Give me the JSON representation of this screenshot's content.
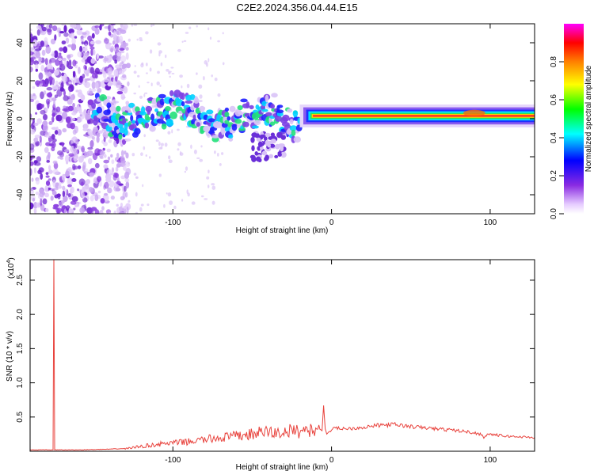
{
  "title": "C2E2.2024.356.04.44.E15",
  "colors": {
    "snr_line": "#e8423c",
    "spectro_low": "#7a3fd6",
    "spectro_band": "#ff2a2a"
  },
  "chart_data": [
    {
      "type": "heatmap",
      "xlabel": "Height of straight line (km)",
      "ylabel": "Frequency (Hz)",
      "xlim": [
        -190,
        128
      ],
      "ylim": [
        -50,
        50
      ],
      "x_ticks": [
        -100,
        0,
        100
      ],
      "y_ticks": [
        -40,
        -20,
        0,
        20,
        40
      ],
      "x_tick_labels": [
        "-100",
        "0",
        "100"
      ],
      "y_tick_labels": [
        "-40",
        "-20",
        "0",
        "20",
        "40"
      ],
      "colorbar": {
        "label": "Normalized spectral amplitude",
        "range": [
          0,
          1
        ],
        "ticks": [
          0.0,
          0.2,
          0.4,
          0.6,
          0.8
        ],
        "tick_labels": [
          "0.0",
          "0.2",
          "0.4",
          "0.6",
          "0.8"
        ],
        "colormap": [
          "#ffffff",
          "#8a2be2",
          "#0000ff",
          "#00ffff",
          "#00ff00",
          "#ffff00",
          "#ff8000",
          "#ff0000",
          "#ff00ff"
        ]
      },
      "features": {
        "noise_region_x": [
          -190,
          -128
        ],
        "wavy_band_x": [
          -150,
          -20
        ],
        "steady_band_x": [
          -20,
          128
        ],
        "steady_band_frequency": 1.5
      }
    },
    {
      "type": "line",
      "xlabel": "Height of straight line (km)",
      "ylabel": "SNR (10 * v/v)",
      "y_multiplier": "(x10",
      "y_multiplier_exp": "4",
      "xlim": [
        -190,
        128
      ],
      "ylim": [
        0,
        28000
      ],
      "x_ticks": [
        -100,
        0,
        100
      ],
      "y_ticks": [
        5000,
        10000,
        15000,
        20000,
        25000
      ],
      "x_tick_labels": [
        "-100",
        "0",
        "100"
      ],
      "y_tick_labels": [
        "0.5",
        "1.0",
        "1.5",
        "2.0",
        "2.5"
      ],
      "series": [
        {
          "x": [
            -190,
            -176,
            -175.5,
            -175,
            -174.5,
            -160,
            -140,
            -130,
            -120,
            -110,
            -100,
            -90,
            -80,
            -70,
            -60,
            -50,
            -45,
            -40,
            -35,
            -30,
            -25,
            -20,
            -15,
            -12,
            -10,
            -8,
            -6,
            -5,
            -4,
            -3,
            -2,
            0,
            5,
            10,
            20,
            30,
            40,
            50,
            60,
            70,
            80,
            90,
            95,
            96,
            97,
            100,
            110,
            120,
            128
          ],
          "y": [
            200,
            200,
            200,
            28000,
            200,
            200,
            300,
            400,
            700,
            1000,
            1200,
            1400,
            1700,
            2000,
            2200,
            2500,
            2700,
            2900,
            2600,
            2800,
            3000,
            2900,
            3200,
            3100,
            3200,
            3600,
            3000,
            6700,
            3300,
            2500,
            2800,
            3200,
            3400,
            3300,
            3500,
            3800,
            3900,
            3600,
            3400,
            3200,
            3000,
            2700,
            2400,
            1900,
            2400,
            2500,
            2200,
            2100,
            2000
          ]
        }
      ]
    }
  ]
}
